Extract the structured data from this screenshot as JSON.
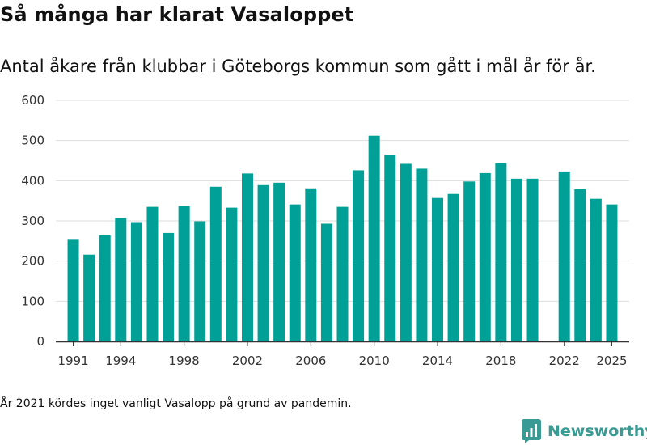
{
  "title": "Så många har klarat Vasaloppet",
  "subtitle": "Antal åkare från klubbar i Göteborgs kommun som gått i mål år för år.",
  "footnote": "År 2021 kördes inget vanligt Vasalopp på grund av pandemin.",
  "brand": {
    "name": "Newsworthy",
    "logo_icon": "newsworthy-logo-icon",
    "color": "#3a9b94"
  },
  "colors": {
    "bar": "#00a096",
    "grid": "#dddddd",
    "axis": "#333333"
  },
  "chart_data": {
    "type": "bar",
    "title": "Så många har klarat Vasaloppet",
    "subtitle": "Antal åkare från klubbar i Göteborgs kommun som gått i mål år för år.",
    "xlabel": "",
    "ylabel": "",
    "ylim": [
      0,
      600
    ],
    "yticks": [
      0,
      100,
      200,
      300,
      400,
      500,
      600
    ],
    "xticks": [
      1991,
      1994,
      1998,
      2002,
      2006,
      2010,
      2014,
      2018,
      2022,
      2025
    ],
    "xlim": [
      1989.9,
      2026.1
    ],
    "grid": true,
    "points": [
      {
        "year": 1991,
        "value": 253
      },
      {
        "year": 1992,
        "value": 216
      },
      {
        "year": 1993,
        "value": 264
      },
      {
        "year": 1994,
        "value": 307
      },
      {
        "year": 1995,
        "value": 297
      },
      {
        "year": 1996,
        "value": 335
      },
      {
        "year": 1997,
        "value": 270
      },
      {
        "year": 1998,
        "value": 337
      },
      {
        "year": 1999,
        "value": 299
      },
      {
        "year": 2000,
        "value": 385
      },
      {
        "year": 2001,
        "value": 333
      },
      {
        "year": 2002,
        "value": 418
      },
      {
        "year": 2003,
        "value": 389
      },
      {
        "year": 2004,
        "value": 395
      },
      {
        "year": 2005,
        "value": 341
      },
      {
        "year": 2006,
        "value": 381
      },
      {
        "year": 2007,
        "value": 293
      },
      {
        "year": 2008,
        "value": 335
      },
      {
        "year": 2009,
        "value": 426
      },
      {
        "year": 2010,
        "value": 512
      },
      {
        "year": 2011,
        "value": 464
      },
      {
        "year": 2012,
        "value": 442
      },
      {
        "year": 2013,
        "value": 430
      },
      {
        "year": 2014,
        "value": 357
      },
      {
        "year": 2015,
        "value": 367
      },
      {
        "year": 2016,
        "value": 398
      },
      {
        "year": 2017,
        "value": 419
      },
      {
        "year": 2018,
        "value": 444
      },
      {
        "year": 2019,
        "value": 405
      },
      {
        "year": 2020,
        "value": 405
      },
      {
        "year": 2022,
        "value": 423
      },
      {
        "year": 2023,
        "value": 379
      },
      {
        "year": 2024,
        "value": 355
      },
      {
        "year": 2025,
        "value": 341
      }
    ]
  }
}
